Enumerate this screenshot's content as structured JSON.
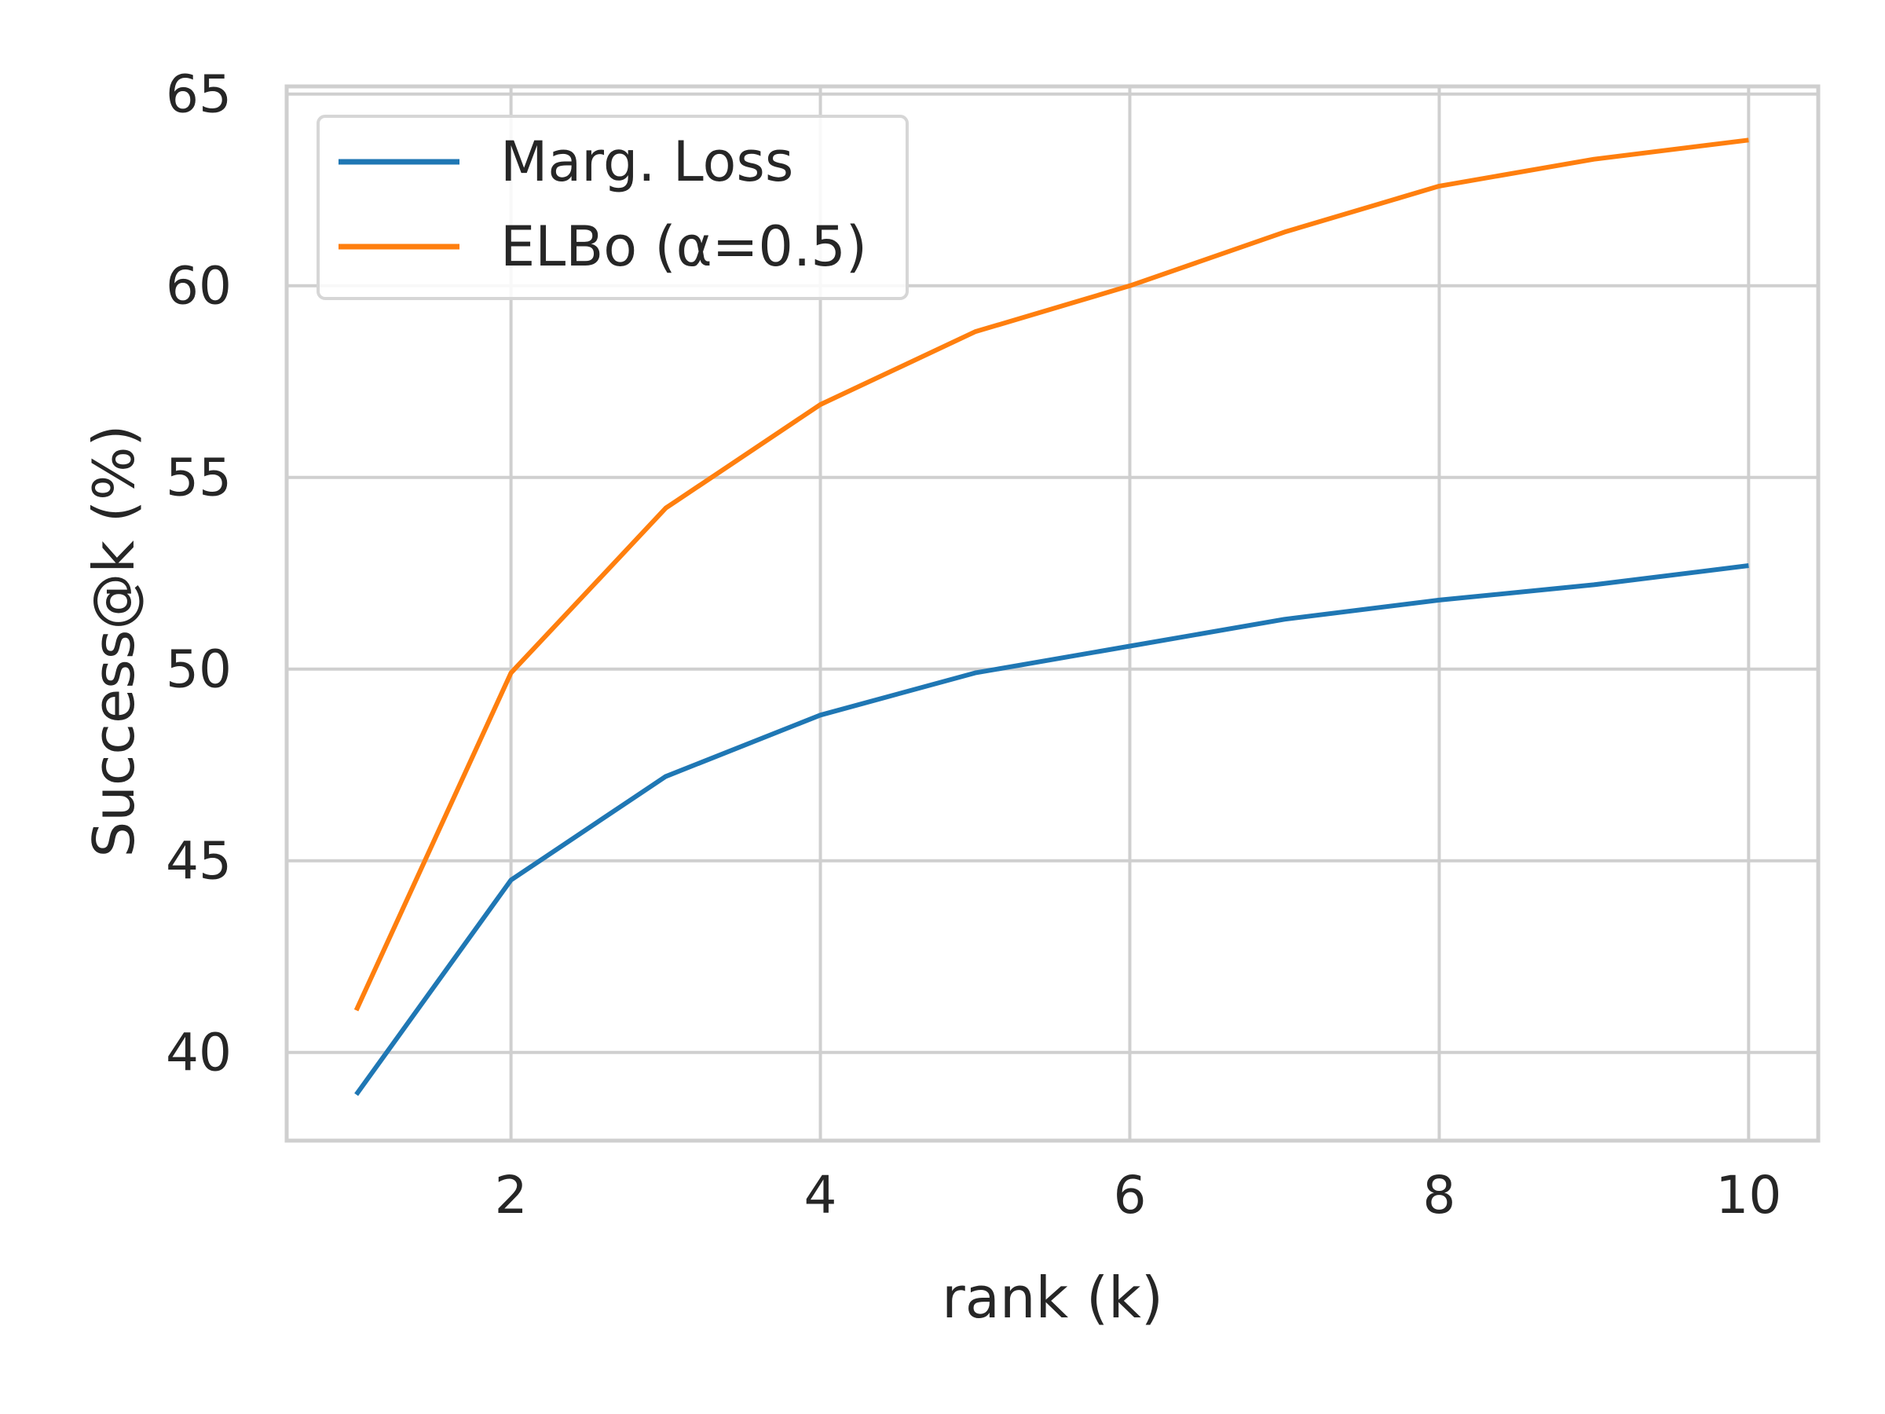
{
  "chart_data": {
    "type": "line",
    "xlabel": "rank (k)",
    "ylabel": "Success@k (%)",
    "x": [
      1,
      2,
      3,
      4,
      5,
      6,
      7,
      8,
      9,
      10
    ],
    "xlim": [
      0.55,
      10.45
    ],
    "ylim": [
      37.7,
      65.2
    ],
    "xticks": [
      2,
      4,
      6,
      8,
      10
    ],
    "yticks": [
      40,
      45,
      50,
      55,
      60,
      65
    ],
    "grid": true,
    "legend_position": "top-left",
    "series": [
      {
        "name": "Marg. Loss",
        "color": "#1f77b4",
        "values": [
          38.9,
          44.5,
          47.2,
          48.8,
          49.9,
          50.6,
          51.3,
          51.8,
          52.2,
          52.7
        ]
      },
      {
        "name": "ELBo (α=0.5)",
        "color": "#ff7f0e",
        "values": [
          41.1,
          49.9,
          54.2,
          56.9,
          58.8,
          60.0,
          61.4,
          62.6,
          63.3,
          63.8
        ]
      }
    ]
  }
}
